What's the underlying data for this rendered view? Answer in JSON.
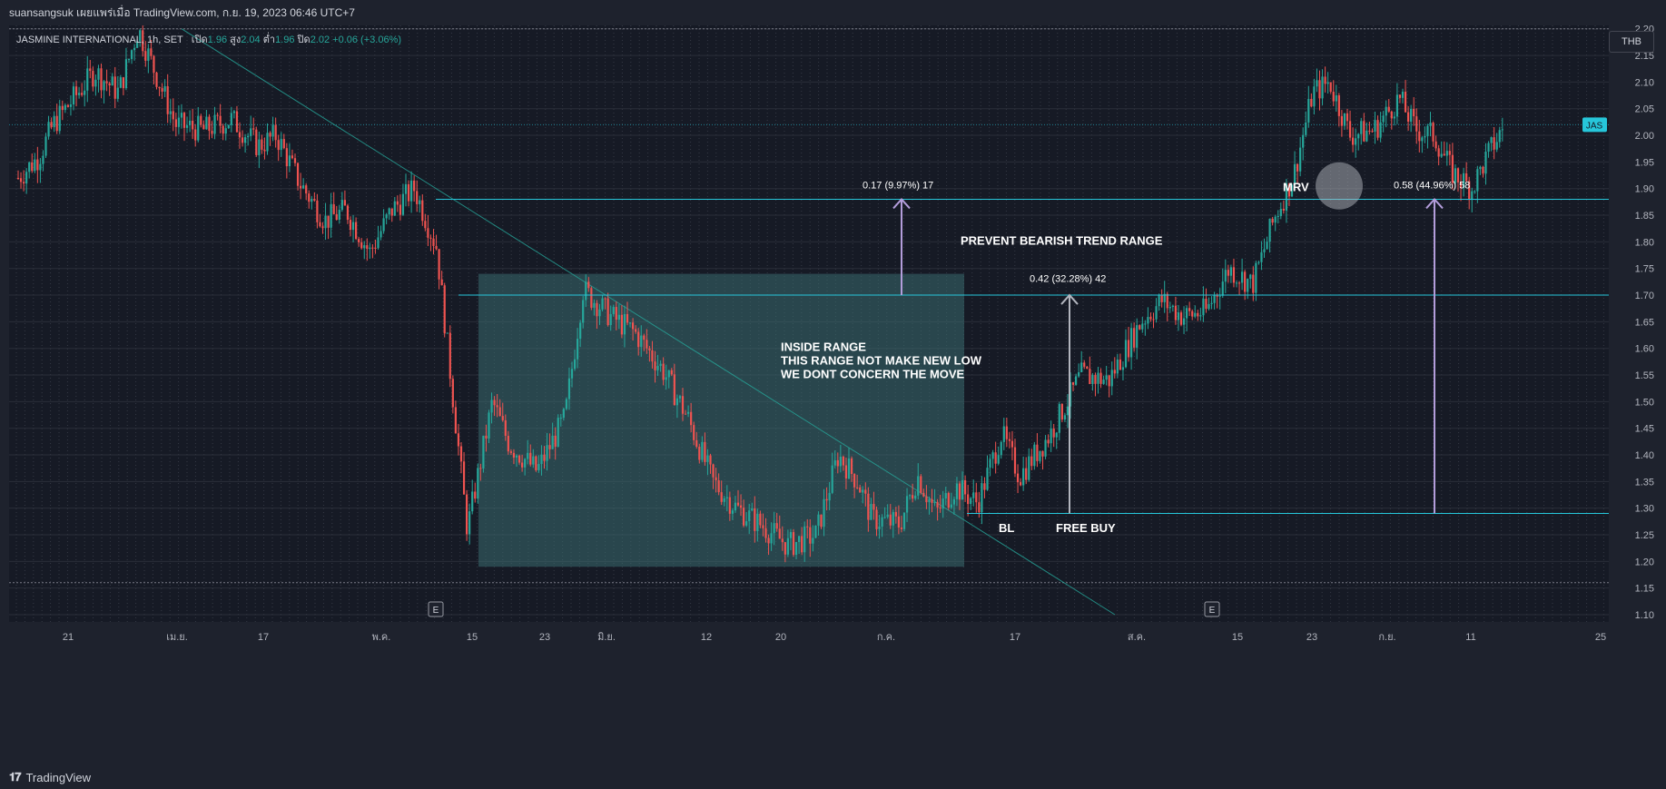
{
  "header": {
    "published": "suansangsuk เผยแพร่เมื่อ TradingView.com, ก.ย. 19, 2023 06:46 UTC+7"
  },
  "currency_button": "THB",
  "footer": {
    "logo_text": "TradingView"
  },
  "colors": {
    "background": "#1e222d",
    "up": "#26a69a",
    "down": "#ef5350",
    "level": "#26c6da",
    "measure": "#b39ddb",
    "box": "#3a6b6f"
  },
  "chart_data": {
    "type": "candlestick",
    "symbol": "JASMINE INTERNATIONAL, 1h, SET",
    "legend": {
      "symbol": "JASMINE INTERNATIONAL, 1h, SET",
      "open_label": "เปิด",
      "open": "1.96",
      "high_label": "สูง",
      "high": "2.04",
      "low_label": "ต่ำ",
      "low": "1.96",
      "close_label": "ปิด",
      "close": "2.02",
      "change": "+0.06 (+3.06%)"
    },
    "ylim": [
      1.1,
      2.22
    ],
    "y_ticks": [
      "1.10",
      "1.15",
      "1.20",
      "1.25",
      "1.30",
      "1.35",
      "1.40",
      "1.45",
      "1.50",
      "1.55",
      "1.60",
      "1.65",
      "1.70",
      "1.75",
      "1.80",
      "1.85",
      "1.90",
      "1.95",
      "2.00",
      "2.05",
      "2.10",
      "2.15",
      "2.20"
    ],
    "x_ticks": [
      "21",
      "เม.ย.",
      "17",
      "พ.ค.",
      "15",
      "23",
      "มิ.ย.",
      "12",
      "20",
      "ก.ค.",
      "17",
      "ส.ค.",
      "15",
      "23",
      "ก.ย.",
      "11",
      "25"
    ],
    "price_tag": {
      "label": "JAS",
      "value": "2.02"
    },
    "levels": [
      "1.88",
      "1.70",
      "1.29"
    ],
    "earnings_markers": [
      "E",
      "E"
    ],
    "annotations": {
      "measure_1": "0.17 (9.97%) 17",
      "measure_2": "0.42 (32.28%) 42",
      "measure_3": "0.58 (44.96%) 58",
      "inside_range": [
        "INSIDE RANGE",
        "THIS RANGE NOT MAKE NEW LOW",
        "WE DONT CONCERN THE MOVE"
      ],
      "prevent": "PREVENT BEARISH TREND RANGE",
      "mrv": "MRV",
      "bl": "BL",
      "free_buy": "FREE BUY"
    },
    "path_points": [
      [
        0,
        1.92
      ],
      [
        0.15,
        1.96
      ],
      [
        0.25,
        2.02
      ],
      [
        0.4,
        2.07
      ],
      [
        0.55,
        2.12
      ],
      [
        0.72,
        2.08
      ],
      [
        0.86,
        2.2
      ],
      [
        0.98,
        2.12
      ],
      [
        1.13,
        2.02
      ],
      [
        1.33,
        2.01
      ],
      [
        1.53,
        2.03
      ],
      [
        1.72,
        1.98
      ],
      [
        1.85,
        2.0
      ],
      [
        2.02,
        1.91
      ],
      [
        2.2,
        1.84
      ],
      [
        2.35,
        1.86
      ],
      [
        2.52,
        1.78
      ],
      [
        2.68,
        1.86
      ],
      [
        2.84,
        1.9
      ],
      [
        3.0,
        1.79
      ],
      [
        3.22,
        1.26
      ],
      [
        3.4,
        1.5
      ],
      [
        3.52,
        1.42
      ],
      [
        3.72,
        1.37
      ],
      [
        3.92,
        1.47
      ],
      [
        4.05,
        1.71
      ],
      [
        4.25,
        1.66
      ],
      [
        4.42,
        1.63
      ],
      [
        4.62,
        1.56
      ],
      [
        4.8,
        1.47
      ],
      [
        4.98,
        1.35
      ],
      [
        5.15,
        1.3
      ],
      [
        5.32,
        1.27
      ],
      [
        5.52,
        1.23
      ],
      [
        5.72,
        1.25
      ],
      [
        5.88,
        1.4
      ],
      [
        6.02,
        1.35
      ],
      [
        6.12,
        1.28
      ],
      [
        6.32,
        1.27
      ],
      [
        6.45,
        1.36
      ],
      [
        6.58,
        1.29
      ],
      [
        6.72,
        1.34
      ],
      [
        6.88,
        1.31
      ],
      [
        7.05,
        1.44
      ],
      [
        7.18,
        1.36
      ],
      [
        7.4,
        1.44
      ],
      [
        7.62,
        1.55
      ],
      [
        7.82,
        1.54
      ],
      [
        8.05,
        1.65
      ],
      [
        8.2,
        1.69
      ],
      [
        8.35,
        1.66
      ],
      [
        8.52,
        1.67
      ],
      [
        8.68,
        1.75
      ],
      [
        8.85,
        1.72
      ],
      [
        9.0,
        1.84
      ],
      [
        9.15,
        1.93
      ],
      [
        9.28,
        2.08
      ],
      [
        9.4,
        2.1
      ],
      [
        9.55,
        2.0
      ],
      [
        9.72,
        2.01
      ],
      [
        9.9,
        2.07
      ],
      [
        10.02,
        2.01
      ],
      [
        10.15,
        2.0
      ],
      [
        10.28,
        1.93
      ],
      [
        10.42,
        1.9
      ],
      [
        10.55,
        1.97
      ],
      [
        10.66,
        2.02
      ]
    ]
  }
}
